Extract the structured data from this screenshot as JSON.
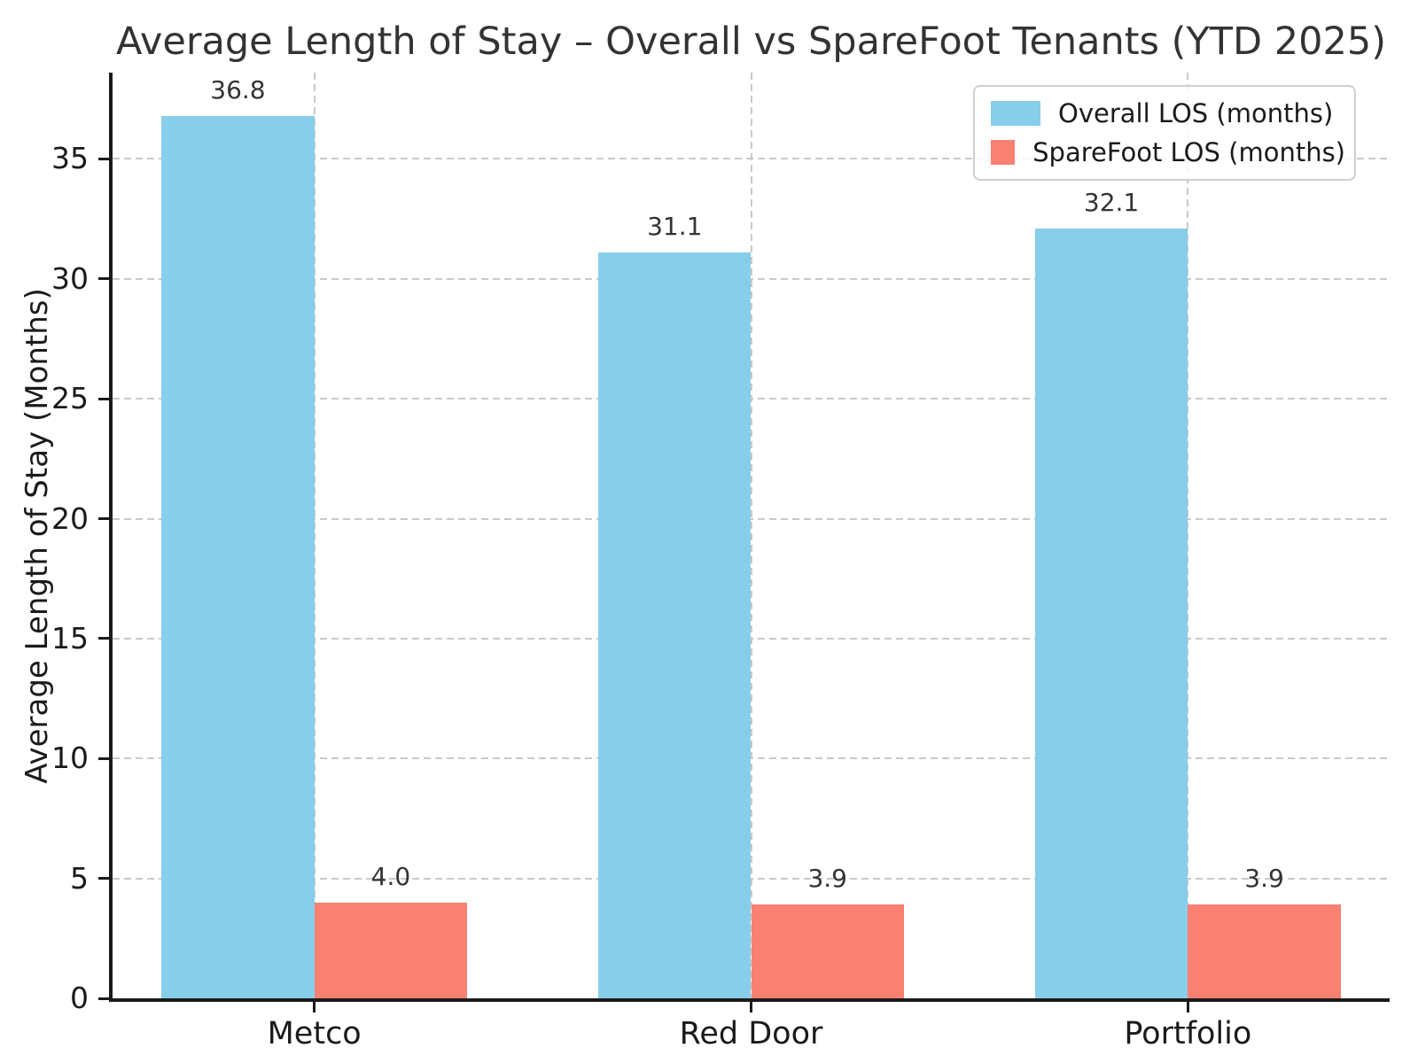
{
  "chart_data": {
    "type": "bar",
    "title": "Average Length of Stay – Overall vs SpareFoot Tenants (YTD 2025)",
    "ylabel": "Average Length of Stay (Months)",
    "categories": [
      "Metco",
      "Red Door",
      "Portfolio"
    ],
    "series": [
      {
        "name": "Overall LOS (months)",
        "color": "#87CEEB",
        "values": [
          36.8,
          31.1,
          32.1
        ],
        "labels": [
          "36.8",
          "31.1",
          "32.1"
        ]
      },
      {
        "name": "SpareFoot LOS (months)",
        "color": "#FA8072",
        "values": [
          4.0,
          3.9,
          3.9
        ],
        "labels": [
          "4.0",
          "3.9",
          "3.9"
        ]
      }
    ],
    "yticks": [
      0,
      5,
      10,
      15,
      20,
      25,
      30,
      35
    ],
    "ylim": [
      0,
      38.6
    ],
    "bar_width": 0.35,
    "grid": "dashed horizontal and vertical",
    "legend_position": "upper right"
  }
}
